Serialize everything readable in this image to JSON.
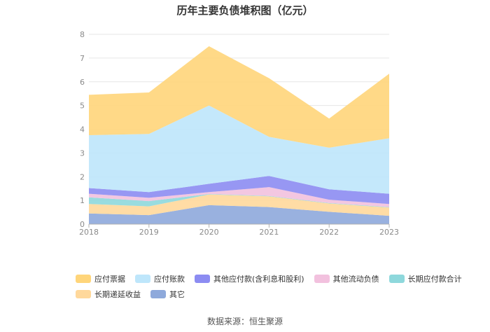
{
  "source_note": "数据来源：恒生聚源",
  "chart_data": {
    "type": "area",
    "stacked": true,
    "title": "历年主要负债堆积图（亿元）",
    "x": [
      "2018",
      "2019",
      "2020",
      "2021",
      "2022",
      "2023"
    ],
    "ylim": [
      0,
      8
    ],
    "yticks": [
      "0",
      "1",
      "2",
      "3",
      "4",
      "5",
      "6",
      "7",
      "8"
    ],
    "grid": true,
    "legend_position": "bottom-left",
    "series": [
      {
        "name": "其它",
        "color": "#8EA9DB",
        "values": [
          0.45,
          0.38,
          0.8,
          0.72,
          0.52,
          0.35
        ]
      },
      {
        "name": "长期递延收益",
        "color": "#FFD89B",
        "values": [
          0.4,
          0.37,
          0.45,
          0.45,
          0.35,
          0.35
        ]
      },
      {
        "name": "长期应付款合计",
        "color": "#8ED8DC",
        "values": [
          0.28,
          0.22,
          0.02,
          0.02,
          0.02,
          0.02
        ]
      },
      {
        "name": "其他流动负债",
        "color": "#F2C1DE",
        "values": [
          0.15,
          0.14,
          0.08,
          0.37,
          0.14,
          0.13
        ]
      },
      {
        "name": "其他应付款(含利息和股利)",
        "color": "#8C8CF2",
        "values": [
          0.24,
          0.24,
          0.35,
          0.47,
          0.44,
          0.43
        ]
      },
      {
        "name": "应付账款",
        "color": "#BEE6FB",
        "values": [
          2.23,
          2.45,
          3.3,
          1.65,
          1.75,
          2.34
        ]
      },
      {
        "name": "应付票据",
        "color": "#FFD57A",
        "values": [
          1.7,
          1.75,
          2.5,
          2.47,
          1.23,
          2.72
        ]
      }
    ],
    "legend_order": [
      "应付票据",
      "应付账款",
      "其他应付款(含利息和股利)",
      "其他流动负债",
      "长期应付款合计",
      "长期递延收益",
      "其它"
    ]
  }
}
